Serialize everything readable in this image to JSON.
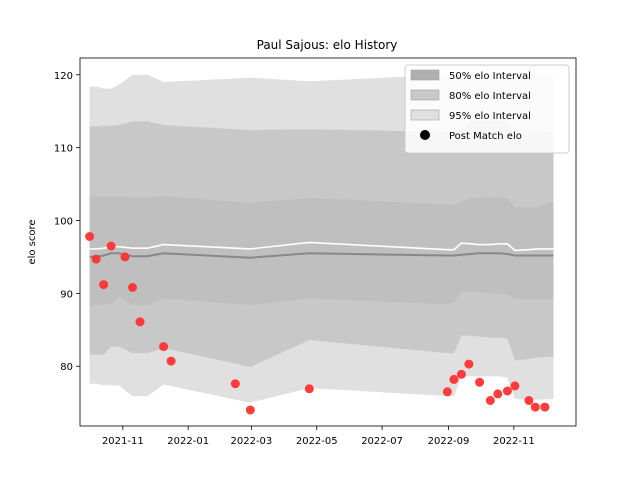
{
  "chart_data": {
    "type": "area",
    "title": "Paul Sajous: elo History",
    "xlabel": "",
    "ylabel": "elo score",
    "xlim": [
      "2021-09-22",
      "2022-12-29"
    ],
    "ylim": [
      71.8,
      122.3
    ],
    "x_ticks": [
      "2021-11",
      "2022-01",
      "2022-03",
      "2022-05",
      "2022-07",
      "2022-09",
      "2022-11"
    ],
    "y_ticks": [
      80,
      90,
      100,
      110,
      120
    ],
    "grid": false,
    "legend_position": "top-right",
    "legend": [
      {
        "label": "50% elo Interval",
        "kind": "patch",
        "color": "#b0b0b0"
      },
      {
        "label": "80% elo Interval",
        "kind": "patch",
        "color": "#c8c8c8"
      },
      {
        "label": "95% elo Interval",
        "kind": "patch",
        "color": "#e0e0e0"
      },
      {
        "label": "Post Match elo",
        "kind": "marker",
        "color": "#000000"
      }
    ],
    "colors": {
      "band95": "#e0e0e0",
      "band80": "#c8c8c8",
      "band50": "#bfbfbf",
      "mean_line": "#ffffff",
      "median_line": "#888888",
      "points": "#ff3333"
    },
    "bands": {
      "x": [
        "2021-10-01",
        "2021-10-07",
        "2021-10-14",
        "2021-10-21",
        "2021-10-28",
        "2021-11-10",
        "2021-11-24",
        "2021-12-09",
        "2022-02-28",
        "2022-04-24",
        "2022-08-31",
        "2022-09-06",
        "2022-09-13",
        "2022-09-22",
        "2022-09-28",
        "2022-10-10",
        "2022-10-19",
        "2022-10-26",
        "2022-11-02",
        "2022-11-15",
        "2022-11-23",
        "2022-12-08"
      ],
      "p95_upper": [
        118.4,
        118.4,
        118.1,
        118.1,
        118.6,
        120.0,
        120.0,
        119.0,
        119.6,
        119.1,
        120.0,
        120.0,
        120.0,
        120.0,
        120.0,
        120.0,
        120.0,
        120.0,
        120.0,
        120.0,
        120.0,
        120.0
      ],
      "p80_upper": [
        112.9,
        112.9,
        113.0,
        113.0,
        113.1,
        113.6,
        113.6,
        113.1,
        112.4,
        112.5,
        112.2,
        112.0,
        112.2,
        113.7,
        113.7,
        113.7,
        113.7,
        113.6,
        112.0,
        112.0,
        112.0,
        112.3
      ],
      "p50_upper": [
        103.3,
        103.3,
        103.3,
        103.3,
        103.3,
        103.2,
        103.2,
        103.4,
        102.4,
        103.1,
        102.2,
        102.1,
        102.6,
        103.1,
        103.1,
        103.2,
        103.2,
        103.0,
        101.8,
        101.8,
        101.8,
        102.6
      ],
      "mean": [
        96.1,
        96.1,
        96.2,
        96.4,
        96.4,
        96.2,
        96.2,
        96.7,
        96.1,
        97.0,
        96.0,
        96.0,
        96.9,
        96.8,
        96.7,
        96.7,
        96.8,
        96.8,
        95.9,
        96.0,
        96.1,
        96.1
      ],
      "median": [
        95.0,
        95.0,
        95.2,
        95.5,
        95.5,
        95.1,
        95.1,
        95.5,
        94.9,
        95.5,
        95.2,
        95.2,
        95.3,
        95.4,
        95.5,
        95.5,
        95.5,
        95.4,
        95.2,
        95.2,
        95.2,
        95.2
      ],
      "p50_lower": [
        88.3,
        88.3,
        88.5,
        88.6,
        89.6,
        88.4,
        88.4,
        89.3,
        88.4,
        89.3,
        88.5,
        88.7,
        90.2,
        90.2,
        90.2,
        90.0,
        90.0,
        89.8,
        89.2,
        89.2,
        89.2,
        89.2
      ],
      "p80_lower": [
        81.6,
        81.6,
        81.6,
        82.7,
        82.7,
        81.8,
        81.8,
        82.5,
        79.9,
        83.6,
        81.8,
        81.8,
        84.2,
        84.2,
        84.1,
        83.9,
        83.9,
        83.8,
        80.8,
        81.0,
        81.2,
        81.3
      ],
      "p95_lower": [
        77.6,
        77.6,
        77.4,
        77.4,
        77.4,
        75.9,
        75.9,
        77.5,
        75.0,
        77.0,
        75.9,
        75.9,
        78.6,
        78.6,
        78.6,
        78.6,
        78.6,
        78.4,
        75.5,
        75.4,
        75.4,
        75.5
      ]
    },
    "points": {
      "x": [
        "2021-10-01",
        "2021-10-07",
        "2021-10-14",
        "2021-10-21",
        "2021-11-03",
        "2021-11-10",
        "2021-11-17",
        "2021-12-09",
        "2021-12-16",
        "2022-02-14",
        "2022-02-28",
        "2022-04-24",
        "2022-08-31",
        "2022-09-06",
        "2022-09-13",
        "2022-09-20",
        "2022-09-30",
        "2022-10-10",
        "2022-10-17",
        "2022-10-26",
        "2022-11-02",
        "2022-11-15",
        "2022-11-21",
        "2022-11-30"
      ],
      "y": [
        97.8,
        94.7,
        91.2,
        96.5,
        95.0,
        90.8,
        86.1,
        82.7,
        80.7,
        77.6,
        74.0,
        76.9,
        76.5,
        78.2,
        78.9,
        80.3,
        77.8,
        75.3,
        76.2,
        76.6,
        77.3,
        75.3,
        74.4,
        74.4
      ]
    }
  }
}
